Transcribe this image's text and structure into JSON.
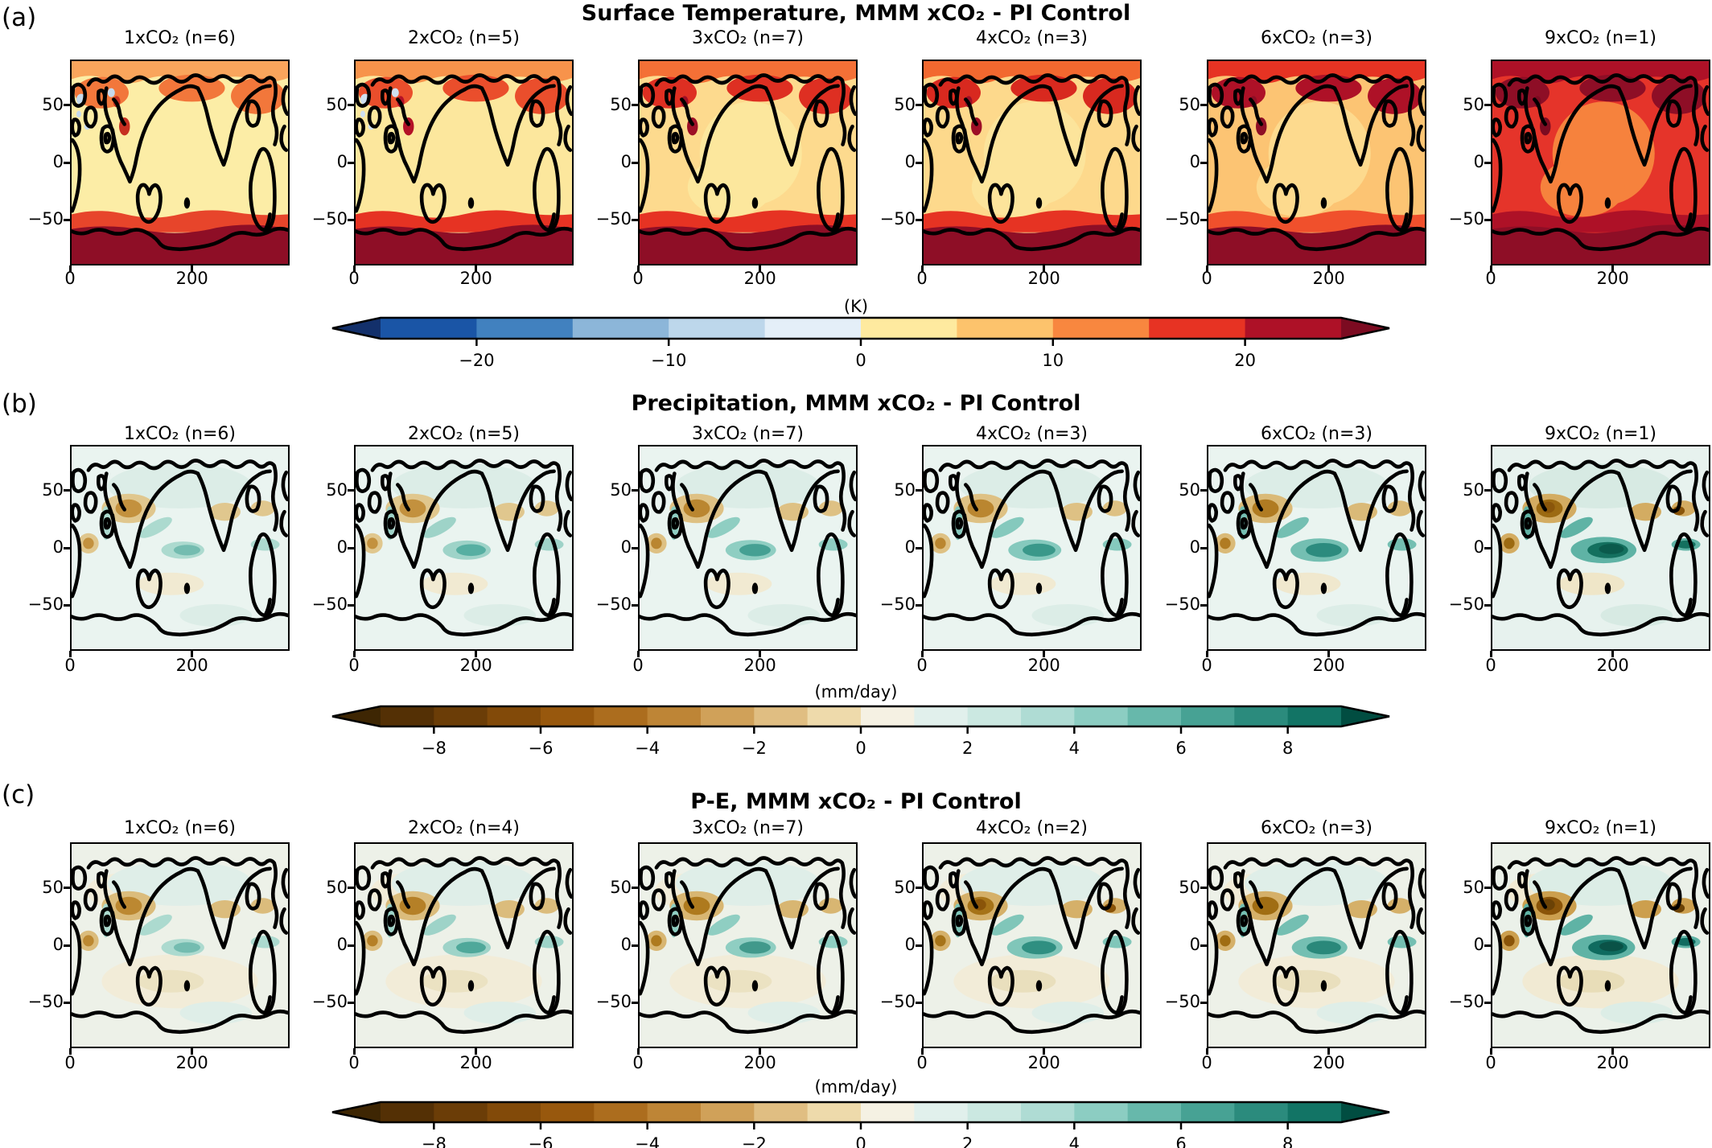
{
  "figure": {
    "background": "#FFFFFF",
    "kind": "multi-panel filled-contour world maps"
  },
  "chart_data": {
    "type": "heatmap",
    "layout": "3 rows x 6 columns of global maps, one shared horizontal colorbar per row",
    "x_axis": {
      "tick_labels": [
        "0",
        "200"
      ],
      "tick_values": [
        0,
        200
      ],
      "range": [
        0,
        360
      ]
    },
    "y_axis": {
      "tick_labels": [
        "50",
        "0",
        "−50"
      ],
      "tick_values": [
        50,
        0,
        -50
      ],
      "range": [
        -90,
        90
      ]
    },
    "rows": [
      {
        "label": "(a)",
        "title": "Surface Temperature, MMM xCO₂  - PI Control",
        "variable": "Surface Temperature",
        "colorbar": {
          "units": "(K)",
          "tick_labels": [
            "−20",
            "−10",
            "0",
            "10",
            "20"
          ],
          "tick_values": [
            -20,
            -10,
            0,
            10,
            20
          ],
          "range": [
            -25,
            25
          ],
          "interval": 5,
          "colors": [
            "#1A55A6",
            "#4181BF",
            "#8CB6D9",
            "#BDD7EB",
            "#E4EFF8",
            "#FEEA9F",
            "#FDC36C",
            "#F8873F",
            "#E73323",
            "#AE1127"
          ],
          "under": "#13306B",
          "over": "#7C0B21"
        },
        "panels": [
          {
            "title": "1xCO₂  (n=6)",
            "co2": "1xCO₂",
            "n": 6,
            "palette": {
              "kind": "temp",
              "bg": "#FCEDA6",
              "arctic": "#F9A55C",
              "arctic2": "#F2773B",
              "hot": "#C62F21",
              "sub": "#E7452B",
              "ant": "#8E0E26",
              "specks": "#C7DBEE",
              "center": null
            }
          },
          {
            "title": "2xCO₂  (n=5)",
            "co2": "2xCO₂",
            "n": 5,
            "palette": {
              "kind": "temp",
              "bg": "#FCE79D",
              "arctic": "#F7934B",
              "arctic2": "#EA4E2C",
              "hot": "#B31127",
              "sub": "#E63323",
              "ant": "#8E0E26",
              "specks": "#CFE0F0",
              "center": null
            }
          },
          {
            "title": "3xCO₂  (n=7)",
            "co2": "3xCO₂",
            "n": 7,
            "palette": {
              "kind": "temp",
              "bg": "#FDDA8E",
              "arctic": "#F47036",
              "arctic2": "#DE2F22",
              "hot": "#9D0E26",
              "sub": "#E63323",
              "ant": "#8E0E26",
              "specks": null,
              "center": "#FCE79D"
            }
          },
          {
            "title": "4xCO₂  (n=3)",
            "co2": "4xCO₂",
            "n": 3,
            "palette": {
              "kind": "temp",
              "bg": "#FDD98C",
              "arctic": "#F2682F",
              "arctic2": "#D8291F",
              "hot": "#9D0E26",
              "sub": "#E63323",
              "ant": "#8E0E26",
              "specks": null,
              "center": "#FCE49B"
            }
          },
          {
            "title": "6xCO₂  (n=3)",
            "co2": "6xCO₂",
            "n": 3,
            "palette": {
              "kind": "temp",
              "bg": "#FCC473",
              "arctic": "#E63323",
              "arctic2": "#AE1127",
              "hot": "#8E0E26",
              "sub": "#F0502C",
              "ant": "#8E0E26",
              "specks": null,
              "center": "#FDDA8E"
            }
          },
          {
            "title": "9xCO₂  (n=1)",
            "co2": "9xCO₂",
            "n": 1,
            "palette": {
              "kind": "temp",
              "bg": "#E5342A",
              "arctic": "#AE1127",
              "arctic2": "#8E0E26",
              "hot": "#7C0B21",
              "sub": "#AE1127",
              "ant": "#8E0E26",
              "specks": null,
              "center": "#F6823D"
            }
          }
        ]
      },
      {
        "label": "(b)",
        "title": "Precipitation, MMM xCO₂  - PI Control",
        "variable": "Precipitation",
        "colorbar": {
          "units": "(mm/day)",
          "tick_labels": [
            "−8",
            "−6",
            "−4",
            "−2",
            "0",
            "2",
            "4",
            "6",
            "8"
          ],
          "tick_values": [
            -8,
            -6,
            -4,
            -2,
            0,
            2,
            4,
            6,
            8
          ],
          "range": [
            -9,
            9
          ],
          "interval": 1,
          "colors": [
            "#543005",
            "#6B3D07",
            "#824A09",
            "#98580D",
            "#AC6D1E",
            "#BE8536",
            "#D0A159",
            "#E0BE82",
            "#EEDAAB",
            "#F5F1E3",
            "#E1F0EC",
            "#CBE8E1",
            "#AFDCD4",
            "#8CCDC2",
            "#67B8AB",
            "#47A294",
            "#2B8B7D",
            "#127465"
          ],
          "under": "#3E2603",
          "over": "#014D41"
        },
        "panels": [
          {
            "title": "1xCO₂  (n=6)",
            "co2": "1xCO₂",
            "n": 6,
            "palette": {
              "kind": "wet",
              "bg": "#EAF4F0",
              "mint": "#DCEDE7",
              "dry": "#E0C78E",
              "dryCore": "#C3913E",
              "dryDark": null,
              "southTan": "#F1EAD2",
              "cream": null,
              "eq1": "#ACDACF",
              "eq2": "#74BCB0",
              "eq3": null,
              "scale": 0.85
            }
          },
          {
            "title": "2xCO₂  (n=5)",
            "co2": "2xCO₂",
            "n": 5,
            "palette": {
              "kind": "wet",
              "bg": "#EAF4F0",
              "mint": "#DCEDE7",
              "dry": "#E0C78E",
              "dryCore": "#C3913E",
              "dryDark": null,
              "southTan": "#F1EAD2",
              "cream": null,
              "eq1": "#9ED3C8",
              "eq2": "#57AFA2",
              "eq3": null,
              "scale": 0.95
            }
          },
          {
            "title": "3xCO₂  (n=7)",
            "co2": "3xCO₂",
            "n": 7,
            "palette": {
              "kind": "wet",
              "bg": "#EAF4F0",
              "mint": "#DCEDE7",
              "dry": "#DEC184",
              "dryCore": "#BA8630",
              "dryDark": null,
              "southTan": "#F1EAD2",
              "cream": null,
              "eq1": "#8FCEC2",
              "eq2": "#45A093",
              "eq3": null,
              "scale": 1.0
            }
          },
          {
            "title": "4xCO₂  (n=3)",
            "co2": "4xCO₂",
            "n": 3,
            "palette": {
              "kind": "wet",
              "bg": "#EAF4F0",
              "mint": "#DCEDE7",
              "dry": "#DEC184",
              "dryCore": "#BA8630",
              "dryDark": null,
              "southTan": "#F1EAD2",
              "cream": null,
              "eq1": "#85C9BD",
              "eq2": "#3A988A",
              "eq3": null,
              "scale": 1.05
            }
          },
          {
            "title": "6xCO₂  (n=3)",
            "co2": "6xCO₂",
            "n": 3,
            "palette": {
              "kind": "wet",
              "bg": "#EAF4F0",
              "mint": "#DCEDE7",
              "dry": "#DABA78",
              "dryCore": "#B07B22",
              "dryDark": null,
              "southTan": "#F0E8CE",
              "cream": null,
              "eq1": "#74BFB2",
              "eq2": "#2C8B7E",
              "eq3": null,
              "scale": 1.15
            }
          },
          {
            "title": "9xCO₂  (n=1)",
            "co2": "9xCO₂",
            "n": 1,
            "palette": {
              "kind": "wet",
              "bg": "#E7F2EE",
              "mint": "#D7EAE3",
              "dry": "#D3AC62",
              "dryCore": "#9C6A12",
              "dryDark": "#8A560B",
              "southTan": "#EFE6C8",
              "cream": null,
              "eq1": "#5FB3A5",
              "eq2": "#14705F",
              "eq3": "#0B5A4C",
              "scale": 1.3
            }
          }
        ]
      },
      {
        "label": "(c)",
        "title": "P-E, MMM xCO₂  - PI Control",
        "variable": "P-E",
        "colorbar": {
          "units": "(mm/day)",
          "tick_labels": [
            "−8",
            "−6",
            "−4",
            "−2",
            "0",
            "2",
            "4",
            "6",
            "8"
          ],
          "tick_values": [
            -8,
            -6,
            -4,
            -2,
            0,
            2,
            4,
            6,
            8
          ],
          "range": [
            -9,
            9
          ],
          "interval": 1,
          "colors": [
            "#543005",
            "#6B3D07",
            "#824A09",
            "#98580D",
            "#AC6D1E",
            "#BE8536",
            "#D0A159",
            "#E0BE82",
            "#EEDAAB",
            "#F5F1E3",
            "#E1F0EC",
            "#CBE8E1",
            "#AFDCD4",
            "#8CCDC2",
            "#67B8AB",
            "#47A294",
            "#2B8B7D",
            "#127465"
          ],
          "under": "#3E2603",
          "over": "#014D41"
        },
        "panels": [
          {
            "title": "1xCO₂  (n=6)",
            "co2": "1xCO₂",
            "n": 6,
            "palette": {
              "kind": "wet",
              "bg": "#EDF1E8",
              "mint": "#DFEEE8",
              "dry": "#DBBC7C",
              "dryCore": "#BC8831",
              "dryDark": null,
              "southTan": "#EBE2C2",
              "cream": "#F2ECD8",
              "eq1": "#ACDACF",
              "eq2": "#74BCB0",
              "eq3": null,
              "scale": 0.85
            }
          },
          {
            "title": "2xCO₂  (n=4)",
            "co2": "2xCO₂",
            "n": 4,
            "palette": {
              "kind": "wet",
              "bg": "#EDF1E8",
              "mint": "#DFEEE8",
              "dry": "#DBBC7C",
              "dryCore": "#B58027",
              "dryDark": null,
              "southTan": "#EBE2C2",
              "cream": "#F2ECD8",
              "eq1": "#9ED3C8",
              "eq2": "#4FA89A",
              "eq3": null,
              "scale": 0.95
            }
          },
          {
            "title": "3xCO₂  (n=7)",
            "co2": "3xCO₂",
            "n": 7,
            "palette": {
              "kind": "wet",
              "bg": "#EDF1E8",
              "mint": "#DFEEE8",
              "dry": "#D8B672",
              "dryCore": "#AE7A1E",
              "dryDark": null,
              "southTan": "#EBE2C2",
              "cream": "#F2ECD8",
              "eq1": "#8FCEC2",
              "eq2": "#41998B",
              "eq3": null,
              "scale": 1.0
            }
          },
          {
            "title": "4xCO₂  (n=2)",
            "co2": "4xCO₂",
            "n": 2,
            "palette": {
              "kind": "wet",
              "bg": "#EDF1E8",
              "mint": "#DFEEE8",
              "dry": "#D5B069",
              "dryCore": "#A67318",
              "dryDark": "#8A5409",
              "southTan": "#E9DFBD",
              "cream": "#F2ECD8",
              "eq1": "#80C6B9",
              "eq2": "#2F8F81",
              "eq3": null,
              "scale": 1.1
            }
          },
          {
            "title": "6xCO₂  (n=3)",
            "co2": "6xCO₂",
            "n": 3,
            "palette": {
              "kind": "wet",
              "bg": "#EDF1E8",
              "mint": "#DFEEE8",
              "dry": "#D5B069",
              "dryCore": "#A06D13",
              "dryDark": null,
              "southTan": "#E9DFBD",
              "cream": "#F2ECD8",
              "eq1": "#74BFB2",
              "eq2": "#2A887A",
              "eq3": null,
              "scale": 1.1
            }
          },
          {
            "title": "9xCO₂  (n=1)",
            "co2": "9xCO₂",
            "n": 1,
            "palette": {
              "kind": "wet",
              "bg": "#EBF1E9",
              "mint": "#DCEDE6",
              "dry": "#CC9F4E",
              "dryCore": "#8A5409",
              "dryDark": "#6B4206",
              "southTan": "#E8DDB8",
              "cream": "#F1EAD3",
              "eq1": "#5FB3A5",
              "eq2": "#0F6B5F",
              "eq3": "#0A5247",
              "scale": 1.25
            }
          }
        ]
      }
    ]
  }
}
